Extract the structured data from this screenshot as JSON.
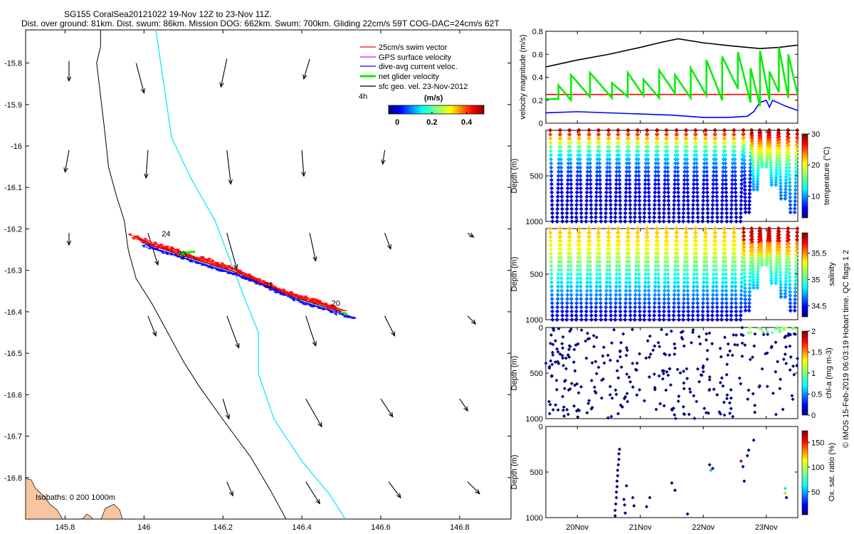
{
  "header": {
    "title_line1": "SG155 CoralSea20121022 19-Nov 12Z to 23-Nov 11Z.",
    "title_line2": "Dist. over ground: 81km. Dist. swum: 86km. Mission DOG: 662km. Swum: 700km. Gliding 22cm/s 59T COG-DAC=24cm/s 62T"
  },
  "side_note": "© IMOS 15-Feb-2019 06:03:19 Hobart time. QC flags 1  2",
  "colors": {
    "swim": "#ff0000",
    "gps": "#ff00ff",
    "dac": "#0000ff",
    "net": "#00ee00",
    "geo": "#000000",
    "coast": "#000000",
    "isobath200": "#000000",
    "isobath1000": "#00e5ff",
    "land": "#f7c59f"
  },
  "map": {
    "legend": {
      "swim": "25cm/s swim vector",
      "gps": "GPS surface velocity",
      "dac": "dive-avg current veloc.",
      "net": "net glider velocity",
      "geo": "sfc geo. vel. 23-Nov-2012",
      "age": "4h",
      "cbar_title": "(m/s)",
      "cbar_ticks": [
        "0",
        "0.2",
        "0.4"
      ],
      "cbar_range": [
        -0.05,
        0.5
      ]
    },
    "isobath_label": "Isobaths:  0   200   1000m",
    "xlim": [
      145.7,
      146.93
    ],
    "ylim": [
      -16.9,
      -15.72
    ],
    "x_ticks": [
      145.8,
      146,
      146.2,
      146.4,
      146.6,
      146.8
    ],
    "x_tick_labels": [
      "145.8",
      "146",
      "146.2",
      "146.4",
      "146.6",
      "146.8"
    ],
    "y_ticks": [
      -15.8,
      -15.9,
      -16,
      -16.1,
      -16.2,
      -16.3,
      -16.4,
      -16.5,
      -16.6,
      -16.7,
      -16.8
    ],
    "y_tick_labels": [
      "-15.8",
      "-15.9",
      "-16",
      "-16.1",
      "-16.2",
      "-16.3",
      "-16.4",
      "-16.5",
      "-16.6",
      "-16.7",
      "-16.8"
    ],
    "day_labels": [
      {
        "text": "24",
        "lon": 146.045,
        "lat": -16.218
      },
      {
        "text": "23",
        "lon": 146.085,
        "lat": -16.268
      },
      {
        "text": "21",
        "lon": 146.305,
        "lat": -16.342
      },
      {
        "text": "20",
        "lon": 146.475,
        "lat": -16.386
      }
    ],
    "track": [
      [
        146.515,
        -16.405
      ],
      [
        146.38,
        -16.365
      ],
      [
        146.25,
        -16.31
      ],
      [
        146.1,
        -16.265
      ],
      [
        146.02,
        -16.24
      ],
      [
        145.995,
        -16.23
      ]
    ],
    "coastline": [
      [
        145.89,
        -15.72
      ],
      [
        145.89,
        -15.76
      ],
      [
        145.88,
        -15.8
      ],
      [
        145.89,
        -15.88
      ],
      [
        145.9,
        -15.96
      ],
      [
        145.91,
        -16.05
      ],
      [
        145.93,
        -16.12
      ],
      [
        145.95,
        -16.18
      ],
      [
        145.96,
        -16.25
      ],
      [
        145.98,
        -16.32
      ],
      [
        146.02,
        -16.38
      ],
      [
        146.06,
        -16.45
      ],
      [
        146.1,
        -16.52
      ],
      [
        146.14,
        -16.58
      ],
      [
        146.2,
        -16.66
      ],
      [
        146.27,
        -16.75
      ],
      [
        146.32,
        -16.83
      ],
      [
        146.36,
        -16.9
      ]
    ],
    "isobath_1000": [
      [
        146.03,
        -15.72
      ],
      [
        146.05,
        -15.85
      ],
      [
        146.07,
        -15.98
      ],
      [
        146.12,
        -16.08
      ],
      [
        146.18,
        -16.18
      ],
      [
        146.22,
        -16.28
      ],
      [
        146.26,
        -16.38
      ],
      [
        146.29,
        -16.45
      ],
      [
        146.29,
        -16.55
      ],
      [
        146.33,
        -16.66
      ],
      [
        146.4,
        -16.76
      ],
      [
        146.47,
        -16.84
      ],
      [
        146.51,
        -16.9
      ]
    ],
    "geo_vectors": [
      {
        "lon": 145.81,
        "lat": -15.795,
        "u": 0.0,
        "v": -0.1
      },
      {
        "lon": 145.98,
        "lat": -15.8,
        "u": 0.04,
        "v": -0.15
      },
      {
        "lon": 146.21,
        "lat": -15.79,
        "u": -0.03,
        "v": -0.14
      },
      {
        "lon": 146.42,
        "lat": -15.79,
        "u": -0.03,
        "v": -0.1
      },
      {
        "lon": 145.81,
        "lat": -16.01,
        "u": -0.02,
        "v": -0.11
      },
      {
        "lon": 146.01,
        "lat": -16.01,
        "u": -0.01,
        "v": -0.14
      },
      {
        "lon": 146.21,
        "lat": -16.01,
        "u": 0.02,
        "v": -0.17
      },
      {
        "lon": 146.4,
        "lat": -16.01,
        "u": 0.01,
        "v": -0.13
      },
      {
        "lon": 146.61,
        "lat": -16.01,
        "u": -0.01,
        "v": -0.07
      },
      {
        "lon": 145.81,
        "lat": -16.21,
        "u": 0.0,
        "v": -0.06
      },
      {
        "lon": 146.01,
        "lat": -16.21,
        "u": 0.05,
        "v": -0.16
      },
      {
        "lon": 146.21,
        "lat": -16.21,
        "u": 0.05,
        "v": -0.18
      },
      {
        "lon": 146.42,
        "lat": -16.21,
        "u": 0.03,
        "v": -0.14
      },
      {
        "lon": 146.61,
        "lat": -16.21,
        "u": 0.03,
        "v": -0.08
      },
      {
        "lon": 146.82,
        "lat": -16.21,
        "u": 0.03,
        "v": -0.02
      },
      {
        "lon": 146.01,
        "lat": -16.41,
        "u": 0.04,
        "v": -0.1
      },
      {
        "lon": 146.21,
        "lat": -16.41,
        "u": 0.06,
        "v": -0.16
      },
      {
        "lon": 146.41,
        "lat": -16.41,
        "u": 0.05,
        "v": -0.15
      },
      {
        "lon": 146.61,
        "lat": -16.41,
        "u": 0.05,
        "v": -0.1
      },
      {
        "lon": 146.82,
        "lat": -16.41,
        "u": 0.04,
        "v": -0.04
      },
      {
        "lon": 146.2,
        "lat": -16.61,
        "u": 0.03,
        "v": -0.1
      },
      {
        "lon": 146.41,
        "lat": -16.61,
        "u": 0.08,
        "v": -0.14
      },
      {
        "lon": 146.6,
        "lat": -16.61,
        "u": 0.06,
        "v": -0.09
      },
      {
        "lon": 146.8,
        "lat": -16.61,
        "u": 0.04,
        "v": -0.06
      },
      {
        "lon": 146.21,
        "lat": -16.81,
        "u": 0.03,
        "v": -0.07
      },
      {
        "lon": 146.41,
        "lat": -16.81,
        "u": 0.07,
        "v": -0.11
      },
      {
        "lon": 146.62,
        "lat": -16.81,
        "u": 0.06,
        "v": -0.08
      },
      {
        "lon": 146.82,
        "lat": -16.81,
        "u": 0.06,
        "v": -0.06
      }
    ]
  },
  "chart_data": [
    {
      "type": "line",
      "ylabel": "velocity magnitude (m/s)",
      "ylim": [
        0,
        0.8
      ],
      "xlim": [
        19.5,
        23.5
      ],
      "y_ticks": [
        0,
        0.2,
        0.4,
        0.6,
        0.8
      ],
      "y_tick_labels": [
        "0",
        "0.2",
        "0.4",
        "0.6",
        "0.8"
      ],
      "series": [
        {
          "color": "#000000",
          "x": [
            19.5,
            20.0,
            20.5,
            21.0,
            21.3,
            21.6,
            22.0,
            22.5,
            22.9,
            23.2,
            23.5
          ],
          "y": [
            0.49,
            0.55,
            0.6,
            0.66,
            0.7,
            0.735,
            0.7,
            0.67,
            0.65,
            0.66,
            0.68
          ]
        },
        {
          "color": "#0000ff",
          "x": [
            19.5,
            20.0,
            20.5,
            21.0,
            21.5,
            22.0,
            22.4,
            22.7,
            22.8,
            22.9,
            23.0,
            23.05,
            23.1,
            23.3,
            23.5
          ],
          "y": [
            0.09,
            0.1,
            0.09,
            0.08,
            0.07,
            0.05,
            0.05,
            0.06,
            0.1,
            0.18,
            0.2,
            0.14,
            0.2,
            0.15,
            0.11
          ]
        },
        {
          "color": "#ff0000",
          "x": [
            19.5,
            23.5
          ],
          "y": [
            0.25,
            0.25
          ]
        },
        {
          "color": "#00ee00",
          "x": [
            19.5,
            19.7,
            19.7,
            19.9,
            19.9,
            20.2,
            20.2,
            20.55,
            20.55,
            20.8,
            20.8,
            21.05,
            21.05,
            21.3,
            21.3,
            21.55,
            21.55,
            21.8,
            21.8,
            22.05,
            22.05,
            22.3,
            22.3,
            22.55,
            22.55,
            22.75,
            22.75,
            22.9,
            22.9,
            23.05,
            23.05,
            23.2,
            23.2,
            23.35,
            23.35,
            23.5
          ],
          "y": [
            0.21,
            0.21,
            0.33,
            0.2,
            0.42,
            0.23,
            0.44,
            0.22,
            0.35,
            0.23,
            0.44,
            0.24,
            0.38,
            0.22,
            0.46,
            0.26,
            0.42,
            0.22,
            0.48,
            0.24,
            0.55,
            0.2,
            0.58,
            0.3,
            0.62,
            0.18,
            0.48,
            0.15,
            0.63,
            0.2,
            0.45,
            0.27,
            0.66,
            0.22,
            0.6,
            0.24
          ]
        }
      ]
    },
    {
      "type": "scatter",
      "ylabel": "Depth (m)",
      "colorbar_label": "temperature (°C)",
      "ylim": [
        1000,
        0
      ],
      "xlim": [
        19.5,
        23.5
      ],
      "y_ticks": [
        500,
        1000
      ],
      "cbar_range": [
        3,
        30
      ],
      "cbar_ticks": [
        "10",
        "20",
        "30"
      ],
      "dive_days": [
        19.57,
        19.73,
        19.88,
        20.03,
        20.19,
        20.34,
        20.5,
        20.65,
        20.81,
        20.96,
        21.11,
        21.27,
        21.42,
        21.58,
        21.73,
        21.88,
        22.04,
        22.19,
        22.34,
        22.49,
        22.64,
        22.77,
        22.9,
        23.05,
        23.2,
        23.35
      ],
      "max_depths": [
        1000,
        1000,
        1000,
        1000,
        1000,
        1000,
        1000,
        1000,
        1000,
        1000,
        1000,
        1000,
        1000,
        1000,
        1000,
        1000,
        1000,
        1000,
        1000,
        1000,
        900,
        650,
        400,
        600,
        750,
        900
      ]
    },
    {
      "type": "scatter",
      "ylabel": "Depth (m)",
      "colorbar_label": "salinity",
      "ylim": [
        1000,
        0
      ],
      "xlim": [
        19.5,
        23.5
      ],
      "y_ticks": [
        500,
        1000
      ],
      "cbar_range": [
        34.3,
        35.9
      ],
      "cbar_ticks": [
        "34.5",
        "35",
        "35.5"
      ],
      "dive_days": [
        19.57,
        19.73,
        19.88,
        20.03,
        20.19,
        20.34,
        20.5,
        20.65,
        20.81,
        20.96,
        21.11,
        21.27,
        21.42,
        21.58,
        21.73,
        21.88,
        22.04,
        22.19,
        22.34,
        22.49,
        22.64,
        22.77,
        22.9,
        23.05,
        23.2,
        23.35
      ],
      "max_depths": [
        1000,
        1000,
        1000,
        1000,
        1000,
        1000,
        1000,
        1000,
        1000,
        1000,
        1000,
        1000,
        1000,
        1000,
        1000,
        1000,
        1000,
        1000,
        1000,
        1000,
        900,
        650,
        400,
        600,
        750,
        900
      ]
    },
    {
      "type": "scatter",
      "ylabel": "Depth (m)",
      "colorbar_label": "chl-a (mg m-3)",
      "ylim": [
        1000,
        0
      ],
      "xlim": [
        19.5,
        23.5
      ],
      "y_ticks": [
        0,
        500,
        1000
      ],
      "cbar_range": [
        0,
        2
      ],
      "cbar_ticks": [
        "0",
        "0.5",
        "1",
        "1.5",
        "2"
      ]
    },
    {
      "type": "scatter",
      "ylabel": "Depth (m)",
      "colorbar_label": "Ox. sat. ratio (%)",
      "ylim": [
        1000,
        0
      ],
      "xlim": [
        19.5,
        23.5
      ],
      "y_ticks": [
        0,
        500,
        1000
      ],
      "cbar_range": [
        5,
        175
      ],
      "cbar_ticks": [
        "50",
        "100",
        "150"
      ],
      "x_ticks": [
        20,
        21,
        22,
        23
      ],
      "x_tick_labels": [
        "20Nov",
        "21Nov",
        "22Nov",
        "23Nov"
      ],
      "points": [
        [
          20.6,
          980
        ],
        [
          20.6,
          920
        ],
        [
          20.61,
          850
        ],
        [
          20.62,
          780
        ],
        [
          20.62,
          720
        ],
        [
          20.63,
          660
        ],
        [
          20.63,
          600
        ],
        [
          20.64,
          540
        ],
        [
          20.64,
          480
        ],
        [
          20.65,
          420
        ],
        [
          20.66,
          360
        ],
        [
          20.66,
          300
        ],
        [
          20.67,
          250
        ],
        [
          20.74,
          800
        ],
        [
          20.75,
          860
        ],
        [
          20.76,
          950
        ],
        [
          20.78,
          650
        ],
        [
          20.88,
          780
        ],
        [
          20.9,
          870
        ],
        [
          21.1,
          880
        ],
        [
          21.15,
          780
        ],
        [
          21.5,
          620
        ],
        [
          21.55,
          700
        ],
        [
          21.75,
          960
        ],
        [
          22.1,
          420
        ],
        [
          22.12,
          480
        ],
        [
          22.15,
          460
        ],
        [
          22.6,
          380
        ],
        [
          22.63,
          440
        ],
        [
          22.65,
          600
        ],
        [
          22.7,
          320
        ],
        [
          22.72,
          260
        ],
        [
          22.8,
          150
        ],
        [
          23.3,
          680
        ],
        [
          23.3,
          730
        ],
        [
          23.32,
          780
        ]
      ]
    }
  ]
}
